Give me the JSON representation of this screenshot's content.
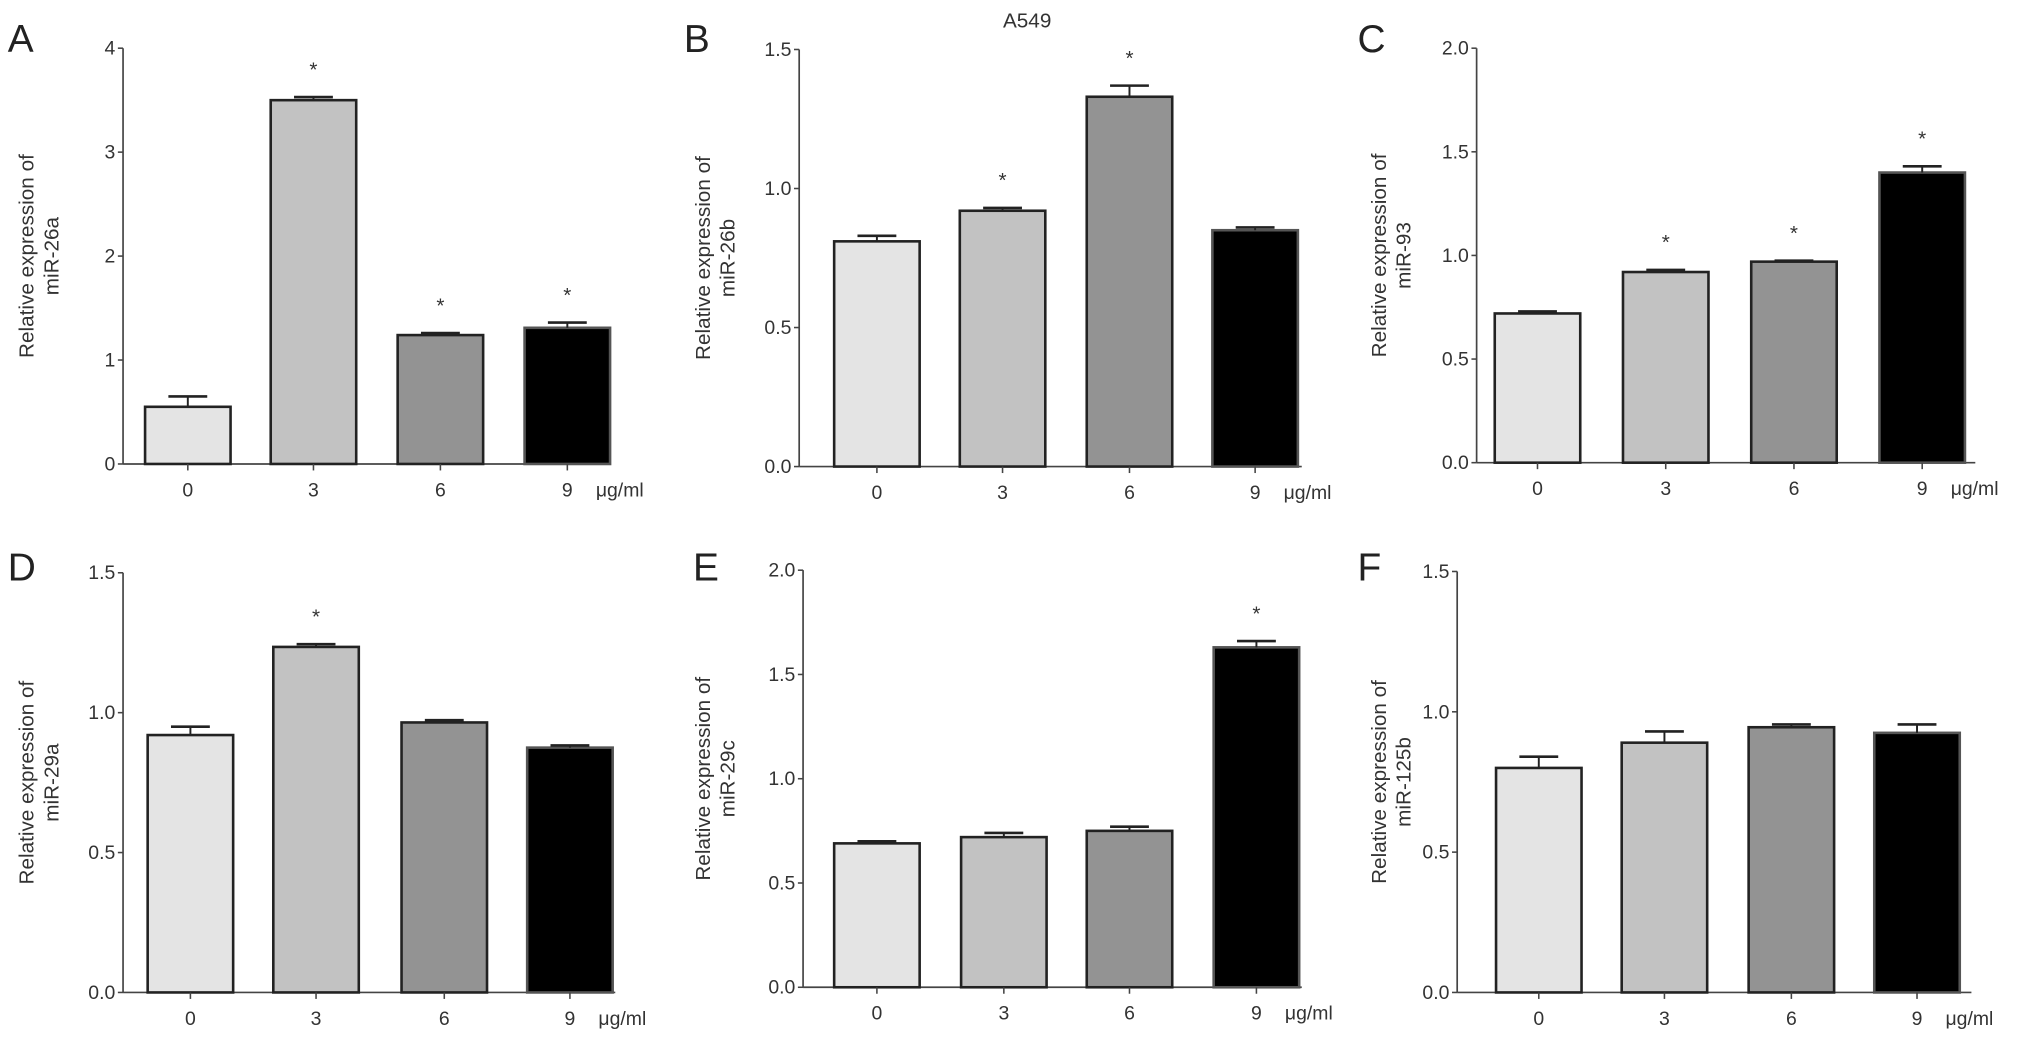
{
  "title": "A549",
  "x_unit": "μg/ml",
  "bar_colors": [
    "#e4e4e4",
    "#c2c2c2",
    "#939393",
    "#000000"
  ],
  "chart_data": [
    {
      "type": "bar",
      "panel": "A",
      "categories": [
        "0",
        "3",
        "6",
        "9"
      ],
      "values": [
        0.55,
        3.5,
        1.24,
        1.31
      ],
      "errors": [
        0.1,
        0.03,
        0.02,
        0.05
      ],
      "significant": [
        false,
        true,
        true,
        true
      ],
      "ylabel": [
        "Relative expression of",
        "miR-26a"
      ],
      "ylim": [
        0,
        4
      ],
      "yticks": [
        "0",
        "1",
        "2",
        "3",
        "4"
      ]
    },
    {
      "type": "bar",
      "panel": "B",
      "categories": [
        "0",
        "3",
        "6",
        "9"
      ],
      "values": [
        0.81,
        0.92,
        1.33,
        0.85
      ],
      "errors": [
        0.02,
        0.01,
        0.04,
        0.01
      ],
      "significant": [
        false,
        true,
        true,
        false
      ],
      "ylabel": [
        "Relative expression of",
        "miR-26b"
      ],
      "ylim": [
        0,
        1.5
      ],
      "yticks": [
        "0.0",
        "0.5",
        "1.0",
        "1.5"
      ]
    },
    {
      "type": "bar",
      "panel": "C",
      "categories": [
        "0",
        "3",
        "6",
        "9"
      ],
      "values": [
        0.72,
        0.92,
        0.97,
        1.4
      ],
      "errors": [
        0.01,
        0.01,
        0.005,
        0.03
      ],
      "significant": [
        false,
        true,
        true,
        true
      ],
      "ylabel": [
        "Relative expression of",
        "miR-93"
      ],
      "ylim": [
        0,
        2
      ],
      "yticks": [
        "0.0",
        "0.5",
        "1.0",
        "1.5",
        "2.0"
      ]
    },
    {
      "type": "bar",
      "panel": "D",
      "categories": [
        "0",
        "3",
        "6",
        "9"
      ],
      "values": [
        0.92,
        1.235,
        0.965,
        0.875
      ],
      "errors": [
        0.03,
        0.01,
        0.008,
        0.008
      ],
      "significant": [
        false,
        true,
        false,
        false
      ],
      "ylabel": [
        "Relative expression of",
        "miR-29a"
      ],
      "ylim": [
        0,
        1.5
      ],
      "yticks": [
        "0.0",
        "0.5",
        "1.0",
        "1.5"
      ]
    },
    {
      "type": "bar",
      "panel": "E",
      "categories": [
        "0",
        "3",
        "6",
        "9"
      ],
      "values": [
        0.69,
        0.72,
        0.75,
        1.63
      ],
      "errors": [
        0.01,
        0.02,
        0.02,
        0.03
      ],
      "significant": [
        false,
        false,
        false,
        true
      ],
      "ylabel": [
        "Relative expression of",
        "miR-29c"
      ],
      "ylim": [
        0,
        2
      ],
      "yticks": [
        "0.0",
        "0.5",
        "1.0",
        "1.5",
        "2.0"
      ]
    },
    {
      "type": "bar",
      "panel": "F",
      "categories": [
        "0",
        "3",
        "6",
        "9"
      ],
      "values": [
        0.8,
        0.89,
        0.945,
        0.925
      ],
      "errors": [
        0.04,
        0.04,
        0.01,
        0.03
      ],
      "significant": [
        false,
        false,
        false,
        false
      ],
      "ylabel": [
        "Relative expression of",
        "miR-125b"
      ],
      "ylim": [
        0,
        1.5
      ],
      "yticks": [
        "0.0",
        "0.5",
        "1.0",
        "1.5"
      ]
    }
  ]
}
